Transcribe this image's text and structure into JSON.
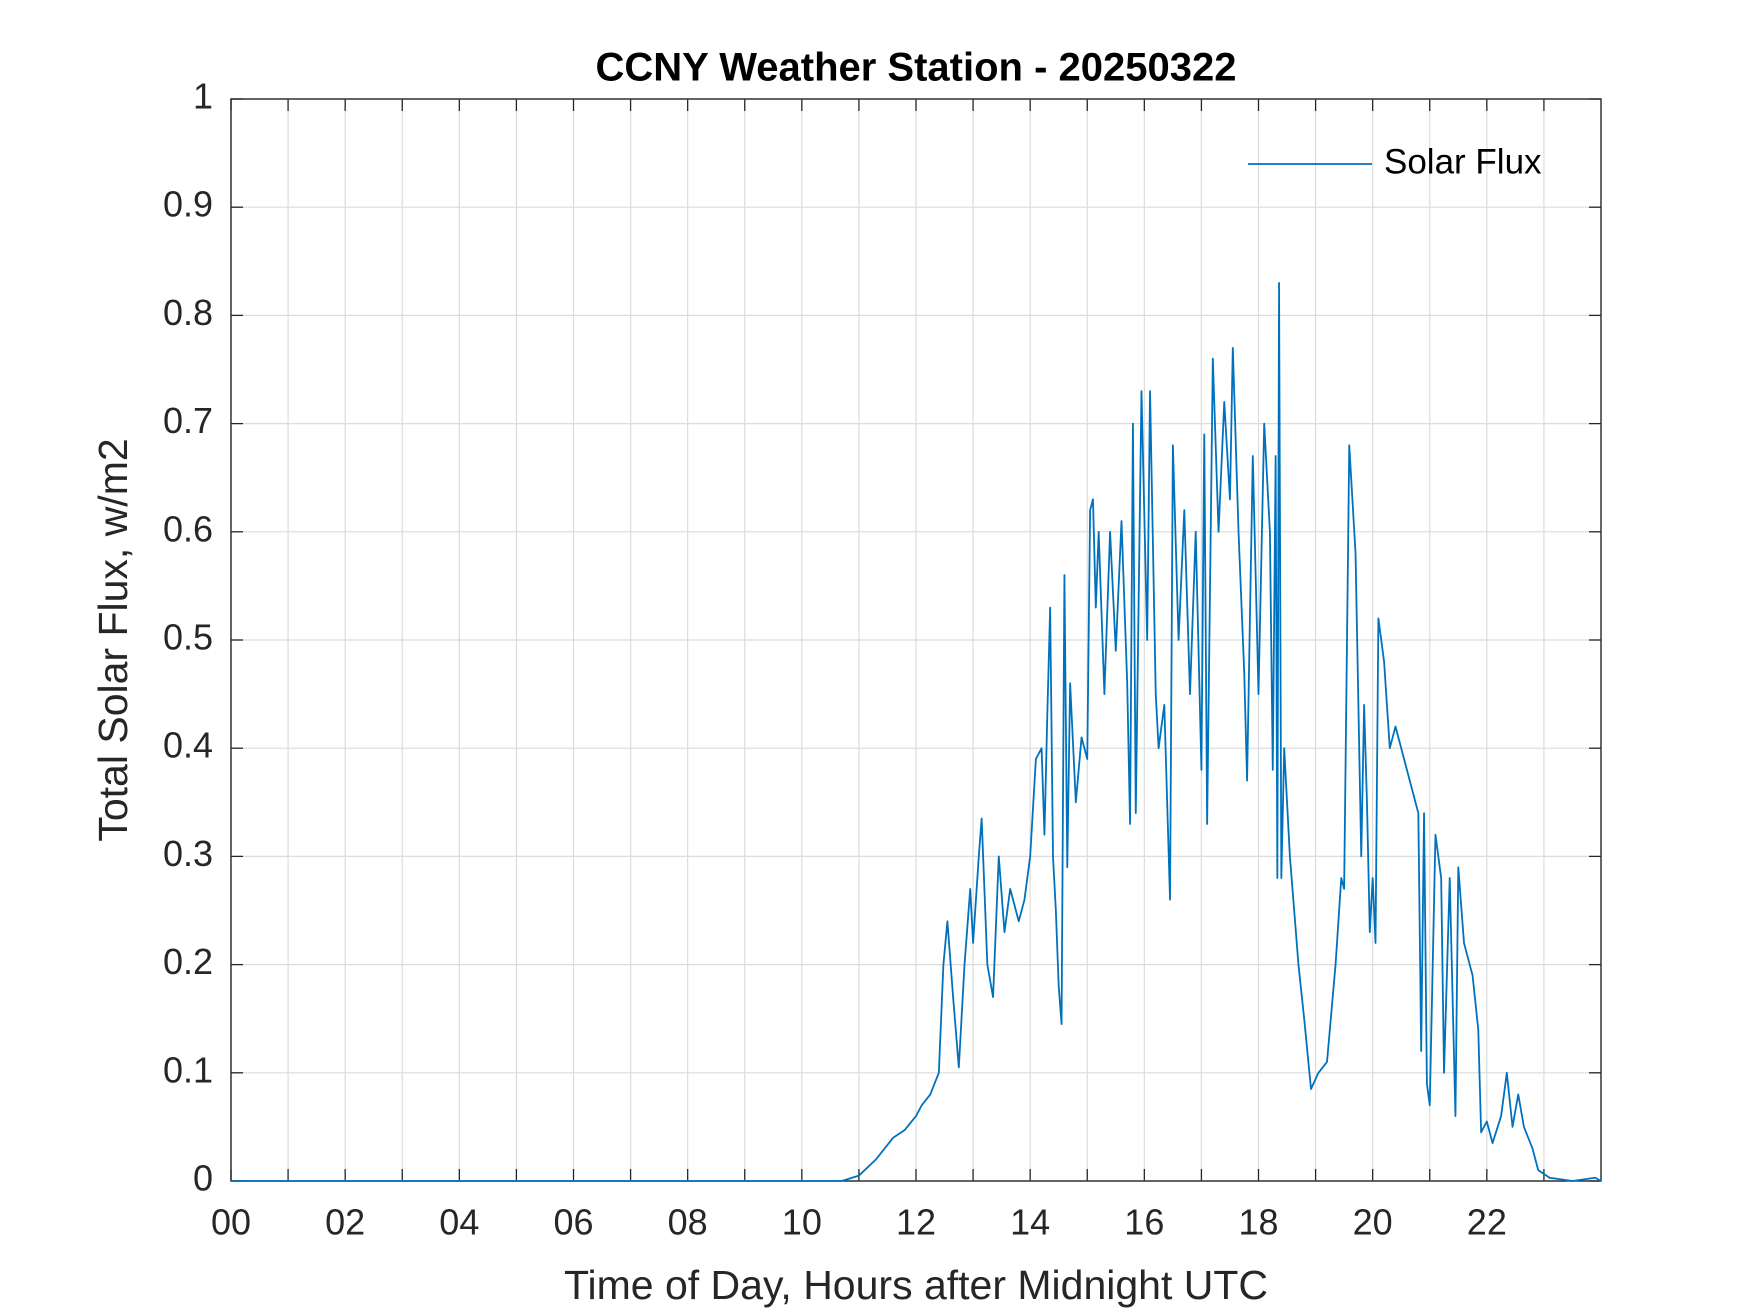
{
  "chart_data": {
    "type": "line",
    "title": "CCNY Weather Station - 20250322",
    "xlabel": "Time of Day, Hours after Midnight UTC",
    "ylabel": "Total Solar Flux, w/m2",
    "xlim": [
      0,
      24
    ],
    "ylim": [
      0,
      1
    ],
    "xticks": [
      {
        "value": 0,
        "label": "00"
      },
      {
        "value": 2,
        "label": "02"
      },
      {
        "value": 4,
        "label": "04"
      },
      {
        "value": 6,
        "label": "06"
      },
      {
        "value": 8,
        "label": "08"
      },
      {
        "value": 10,
        "label": "10"
      },
      {
        "value": 12,
        "label": "12"
      },
      {
        "value": 14,
        "label": "14"
      },
      {
        "value": 16,
        "label": "16"
      },
      {
        "value": 18,
        "label": "18"
      },
      {
        "value": 20,
        "label": "20"
      },
      {
        "value": 22,
        "label": "22"
      }
    ],
    "xminor_ticks": [
      1,
      3,
      5,
      7,
      9,
      11,
      13,
      15,
      17,
      19,
      21,
      23
    ],
    "yticks": [
      0,
      0.1,
      0.2,
      0.3,
      0.4,
      0.5,
      0.6,
      0.7,
      0.8,
      0.9,
      1
    ],
    "grid": true,
    "legend": "upper right",
    "x": [
      0,
      10.7,
      11.0,
      11.3,
      11.6,
      11.8,
      12.0,
      12.1,
      12.25,
      12.4,
      12.48,
      12.55,
      12.65,
      12.75,
      12.85,
      12.95,
      13.0,
      13.1,
      13.15,
      13.25,
      13.35,
      13.45,
      13.55,
      13.65,
      13.8,
      13.9,
      14.0,
      14.1,
      14.2,
      14.25,
      14.3,
      14.35,
      14.4,
      14.45,
      14.5,
      14.55,
      14.6,
      14.65,
      14.7,
      14.8,
      14.9,
      15.0,
      15.05,
      15.1,
      15.15,
      15.2,
      15.3,
      15.4,
      15.5,
      15.6,
      15.7,
      15.75,
      15.8,
      15.85,
      15.95,
      16.05,
      16.1,
      16.2,
      16.25,
      16.35,
      16.45,
      16.5,
      16.6,
      16.7,
      16.8,
      16.9,
      17.0,
      17.05,
      17.1,
      17.2,
      17.3,
      17.4,
      17.5,
      17.55,
      17.65,
      17.75,
      17.8,
      17.9,
      18.0,
      18.1,
      18.2,
      18.25,
      18.3,
      18.33,
      18.36,
      18.4,
      18.45,
      18.55,
      18.7,
      18.8,
      18.92,
      19.05,
      19.2,
      19.35,
      19.45,
      19.5,
      19.59,
      19.7,
      19.8,
      19.85,
      19.9,
      19.95,
      20.0,
      20.05,
      20.1,
      20.2,
      20.3,
      20.4,
      20.55,
      20.7,
      20.8,
      20.85,
      20.9,
      20.95,
      21.0,
      21.1,
      21.2,
      21.25,
      21.35,
      21.45,
      21.5,
      21.6,
      21.75,
      21.85,
      21.9,
      22.0,
      22.1,
      22.25,
      22.35,
      22.45,
      22.55,
      22.65,
      22.8,
      22.9,
      23.1,
      23.5,
      23.9,
      24.0
    ],
    "series": [
      {
        "name": "Solar Flux",
        "color": "#0072BD",
        "values": [
          0,
          0,
          0.005,
          0.02,
          0.04,
          0.047,
          0.06,
          0.07,
          0.08,
          0.1,
          0.2,
          0.24,
          0.17,
          0.105,
          0.2,
          0.27,
          0.22,
          0.3,
          0.335,
          0.2,
          0.17,
          0.3,
          0.23,
          0.27,
          0.24,
          0.26,
          0.3,
          0.39,
          0.4,
          0.32,
          0.43,
          0.53,
          0.3,
          0.25,
          0.18,
          0.145,
          0.56,
          0.29,
          0.46,
          0.35,
          0.41,
          0.39,
          0.62,
          0.63,
          0.53,
          0.6,
          0.45,
          0.6,
          0.49,
          0.61,
          0.46,
          0.33,
          0.7,
          0.34,
          0.73,
          0.5,
          0.73,
          0.45,
          0.4,
          0.44,
          0.26,
          0.68,
          0.5,
          0.62,
          0.45,
          0.6,
          0.38,
          0.69,
          0.33,
          0.76,
          0.6,
          0.72,
          0.63,
          0.77,
          0.6,
          0.47,
          0.37,
          0.67,
          0.45,
          0.7,
          0.6,
          0.38,
          0.67,
          0.28,
          0.83,
          0.28,
          0.4,
          0.3,
          0.2,
          0.15,
          0.085,
          0.1,
          0.11,
          0.2,
          0.28,
          0.27,
          0.68,
          0.58,
          0.3,
          0.44,
          0.35,
          0.23,
          0.28,
          0.22,
          0.52,
          0.48,
          0.4,
          0.42,
          0.39,
          0.36,
          0.34,
          0.12,
          0.34,
          0.09,
          0.07,
          0.32,
          0.28,
          0.1,
          0.28,
          0.06,
          0.29,
          0.22,
          0.19,
          0.14,
          0.045,
          0.055,
          0.035,
          0.06,
          0.1,
          0.05,
          0.08,
          0.05,
          0.03,
          0.01,
          0.003,
          0,
          0.003,
          0
        ]
      }
    ]
  }
}
